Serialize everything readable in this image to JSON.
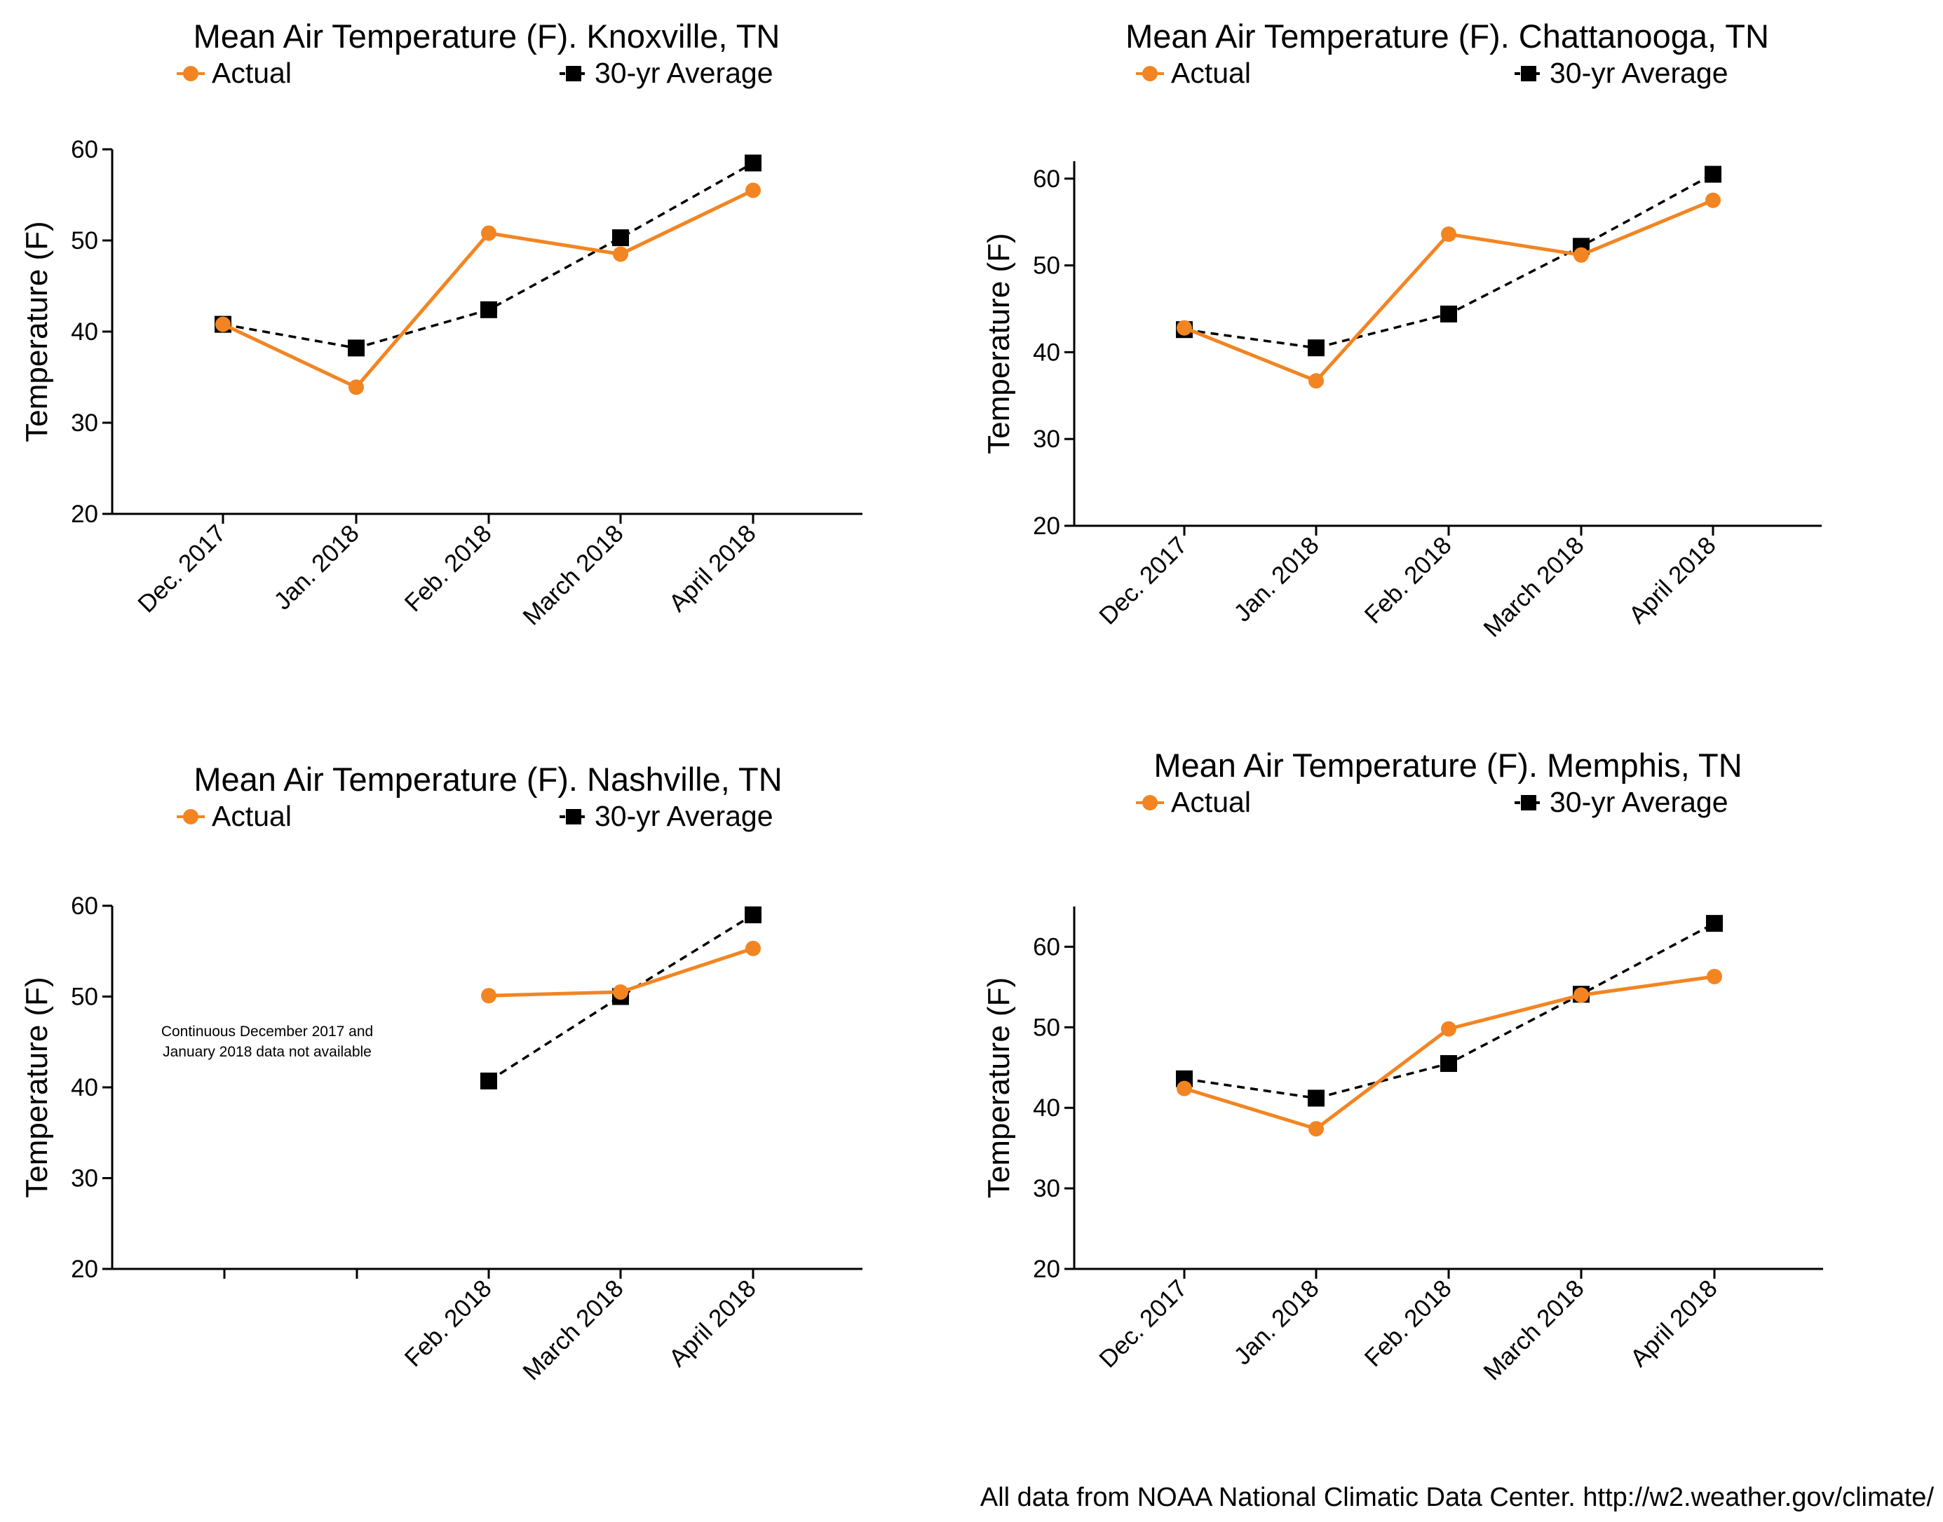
{
  "footer": {
    "source": "All data from NOAA National Climatic Data Center. http://w2.weather.gov/climate/"
  },
  "colors": {
    "actual": "#F28522",
    "average": "#000000"
  },
  "chart_data": [
    {
      "type": "line",
      "title": "Mean Air Temperature (F). Knoxville, TN",
      "xlabel": "",
      "ylabel": "Temperature (F)",
      "ylim": [
        20,
        60
      ],
      "yticks": [
        20,
        30,
        40,
        50,
        60
      ],
      "categories": [
        "Dec. 2017",
        "Jan. 2018",
        "Feb. 2018",
        "March 2018",
        "April 2018"
      ],
      "series": [
        {
          "name": "Actual",
          "marker": "circle",
          "line": "solid",
          "values": [
            40.8,
            33.9,
            50.8,
            48.5,
            55.5
          ]
        },
        {
          "name": "30-yr Average",
          "marker": "square",
          "line": "dashed",
          "values": [
            40.8,
            38.2,
            42.4,
            50.3,
            58.5
          ]
        }
      ],
      "note": ""
    },
    {
      "type": "line",
      "title": "Mean Air Temperature (F). Chattanooga, TN",
      "xlabel": "",
      "ylabel": "Temperature (F)",
      "ylim": [
        20,
        62
      ],
      "yticks": [
        20,
        30,
        40,
        50,
        60
      ],
      "categories": [
        "Dec. 2017",
        "Jan. 2018",
        "Feb. 2018",
        "March 2018",
        "April 2018"
      ],
      "series": [
        {
          "name": "Actual",
          "marker": "circle",
          "line": "solid",
          "values": [
            42.8,
            36.7,
            53.6,
            51.2,
            57.5
          ]
        },
        {
          "name": "30-yr Average",
          "marker": "square",
          "line": "dashed",
          "values": [
            42.6,
            40.5,
            44.4,
            52.2,
            60.5
          ]
        }
      ],
      "note": ""
    },
    {
      "type": "line",
      "title": "Mean Air Temperature (F). Nashville, TN",
      "xlabel": "",
      "ylabel": "Temperature (F)",
      "ylim": [
        20,
        60
      ],
      "yticks": [
        20,
        30,
        40,
        50,
        60
      ],
      "categories": [
        "",
        "",
        "Feb. 2018",
        "March 2018",
        "April 2018"
      ],
      "series": [
        {
          "name": "Actual",
          "marker": "circle",
          "line": "solid",
          "values": [
            null,
            null,
            50.1,
            50.5,
            55.3
          ]
        },
        {
          "name": "30-yr Average",
          "marker": "square",
          "line": "dashed",
          "values": [
            null,
            null,
            40.7,
            50.0,
            59.0
          ]
        }
      ],
      "note": "Continuous December 2017 and\nJanuary 2018 data not available"
    },
    {
      "type": "line",
      "title": "Mean Air Temperature (F). Memphis, TN",
      "xlabel": "",
      "ylabel": "Temperature (F)",
      "ylim": [
        20,
        65
      ],
      "yticks": [
        20,
        30,
        40,
        50,
        60
      ],
      "categories": [
        "Dec. 2017",
        "Jan. 2018",
        "Feb. 2018",
        "March 2018",
        "April 2018"
      ],
      "series": [
        {
          "name": "Actual",
          "marker": "circle",
          "line": "solid",
          "values": [
            42.4,
            37.4,
            49.8,
            54.0,
            56.3
          ]
        },
        {
          "name": "30-yr Average",
          "marker": "square",
          "line": "dashed",
          "values": [
            43.6,
            41.2,
            45.5,
            54.1,
            62.9
          ]
        }
      ],
      "note": ""
    }
  ]
}
